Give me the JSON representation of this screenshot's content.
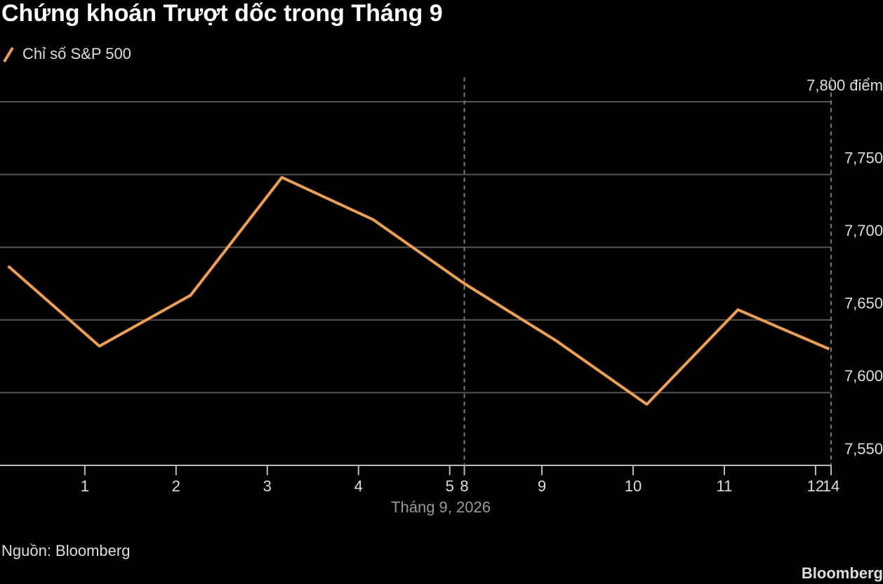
{
  "chart_data": {
    "type": "line",
    "title": "Chứng khoán Trượt dốc trong Tháng 9",
    "xlabel": "Tháng 9, 2026",
    "source": "Nguồn: Bloomberg",
    "brand": "Bloomberg",
    "x": [
      0,
      1,
      2,
      3,
      4,
      5,
      6,
      7,
      8,
      9
    ],
    "xlim": [
      -0.09,
      9.02
    ],
    "xticks": [
      {
        "value": 0.84,
        "label": "1"
      },
      {
        "value": 1.84,
        "label": "2"
      },
      {
        "value": 2.84,
        "label": "3"
      },
      {
        "value": 3.84,
        "label": "4"
      },
      {
        "value": 4.84,
        "label": "5"
      },
      {
        "value": 5.0,
        "label": "8"
      },
      {
        "value": 5.85,
        "label": "9"
      },
      {
        "value": 6.85,
        "label": "10"
      },
      {
        "value": 7.85,
        "label": "11"
      },
      {
        "value": 8.85,
        "label": "12"
      },
      {
        "value": 9.02,
        "label": "14"
      }
    ],
    "ylim": [
      7550,
      7800
    ],
    "yticks": [
      {
        "value": 7550,
        "label": "7,550"
      },
      {
        "value": 7600,
        "label": "7,600"
      },
      {
        "value": 7650,
        "label": "7,650"
      },
      {
        "value": 7700,
        "label": "7,700"
      },
      {
        "value": 7750,
        "label": "7,750"
      },
      {
        "value": 7800,
        "label": "7,800 điểm"
      }
    ],
    "grid": true,
    "series": [
      {
        "name": "Chỉ số S&P 500",
        "color": "#f0a04b",
        "values": [
          7687,
          7632,
          7667,
          7748,
          7719,
          7675,
          7636,
          7592,
          7657,
          7630
        ]
      }
    ]
  }
}
